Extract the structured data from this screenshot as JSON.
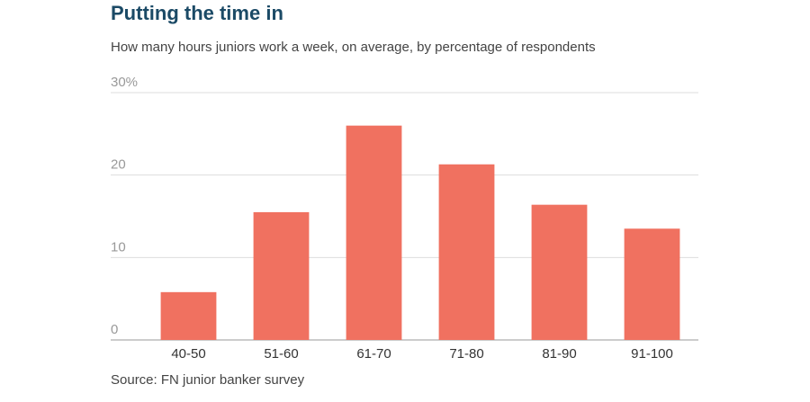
{
  "chart_data": {
    "type": "bar",
    "title": "Putting the time in",
    "subtitle": "How many hours juniors work a week, on average, by percentage of respondents",
    "source": "Source: FN junior banker survey",
    "categories": [
      "40-50",
      "51-60",
      "61-70",
      "71-80",
      "81-90",
      "91-100"
    ],
    "values": [
      5.8,
      15.5,
      26,
      21.3,
      16.4,
      13.5
    ],
    "color": "#f07160",
    "ylim": [
      0,
      30
    ],
    "yticks": [
      0,
      10,
      20,
      {
        "value": 30,
        "label": "30%"
      }
    ],
    "grid": true
  }
}
